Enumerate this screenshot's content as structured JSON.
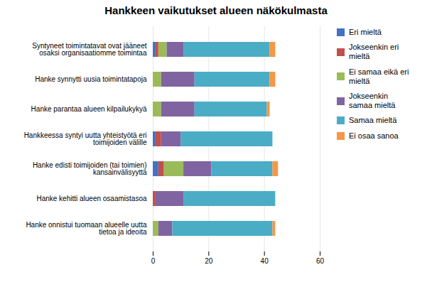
{
  "chart_data": {
    "type": "bar",
    "orientation": "horizontal",
    "stacked": true,
    "title": "Hankkeen vaikutukset alueen näkökulmasta",
    "categories": [
      "Syntyneet toimintatavat ovat jääneet\nosaksi organisaatiomme toimintaa",
      "Hanke synnytti uusia toimintatapoja",
      "Hanke parantaa alueen kilpailukykyä",
      "Hankkeessa syntyi uutta yhteistyötä eri\ntoimijoiden välille",
      "Hanke edisti toimijoiden (tai toimien)\nkansainvälisyyttä",
      "Hanke kehitti alueen osaamistasoa",
      "Hanke onnistui tuomaan alueelle uutta\ntietoa ja ideoita"
    ],
    "series": [
      {
        "name": "Eri mieltä",
        "color": "#4472c4",
        "values": [
          1,
          0,
          0,
          1,
          2,
          0,
          0
        ]
      },
      {
        "name": "Jokseenkin eri\nmieltä",
        "color": "#c0504d",
        "values": [
          1,
          0,
          0,
          2,
          2,
          1,
          0
        ]
      },
      {
        "name": "Ei samaa eikä eri\nmieltä",
        "color": "#9bbb59",
        "values": [
          3,
          3,
          3,
          0,
          7,
          0,
          2
        ]
      },
      {
        "name": "Jokseenkin\nsamaa mieltä",
        "color": "#8064a2",
        "values": [
          6,
          12,
          12,
          7,
          10,
          10,
          5
        ]
      },
      {
        "name": "Samaa mieltä",
        "color": "#4bacc6",
        "values": [
          31,
          27,
          26,
          33,
          22,
          33,
          36
        ]
      },
      {
        "name": "Ei osaa sanoa",
        "color": "#f79646",
        "values": [
          2,
          2,
          1,
          0,
          2,
          0,
          1
        ]
      }
    ],
    "xlim": [
      0,
      60
    ],
    "xticks": [
      0,
      20,
      40,
      60
    ],
    "grid": true,
    "legend": "right"
  }
}
